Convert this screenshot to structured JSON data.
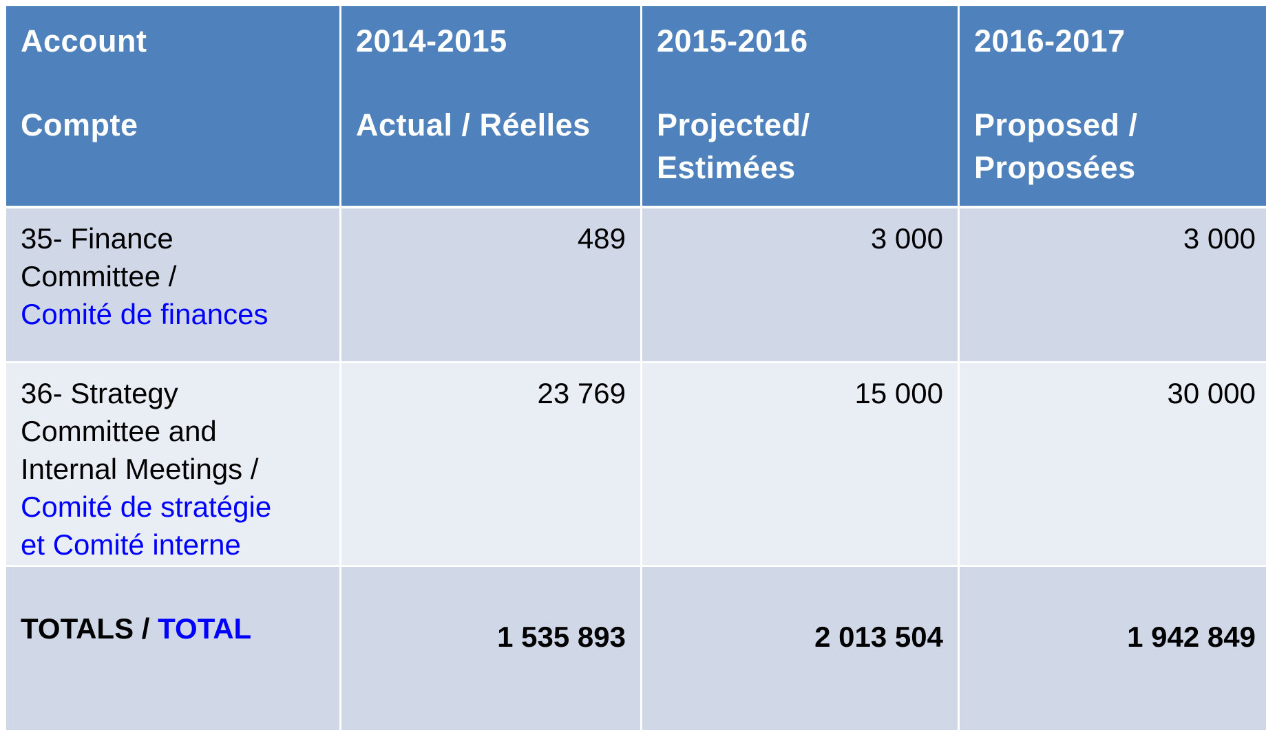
{
  "table": {
    "header": [
      {
        "year": "Account",
        "label": [
          "Compte"
        ]
      },
      {
        "year": "2014-2015",
        "label": [
          "Actual / Réelles"
        ]
      },
      {
        "year": "2015-2016",
        "label": [
          "Projected/",
          "Estimées"
        ]
      },
      {
        "year": "2016-2017",
        "label": [
          "Proposed /",
          "Proposées"
        ]
      }
    ],
    "rows": [
      {
        "en": [
          "35- Finance",
          "Committee /"
        ],
        "fr": [
          "Comité de finances"
        ],
        "values": [
          "489",
          "3 000",
          "3 000"
        ]
      },
      {
        "en": [
          "36- Strategy",
          "Committee and",
          "Internal Meetings /"
        ],
        "fr": [
          "Comité de stratégie",
          "et Comité interne"
        ],
        "values": [
          "23 769",
          "15 000",
          "30 000"
        ]
      }
    ],
    "totals": {
      "en": "TOTALS /",
      "fr": "TOTAL",
      "values": [
        "1 535 893",
        "2 013 504",
        "1 942 849"
      ]
    }
  }
}
